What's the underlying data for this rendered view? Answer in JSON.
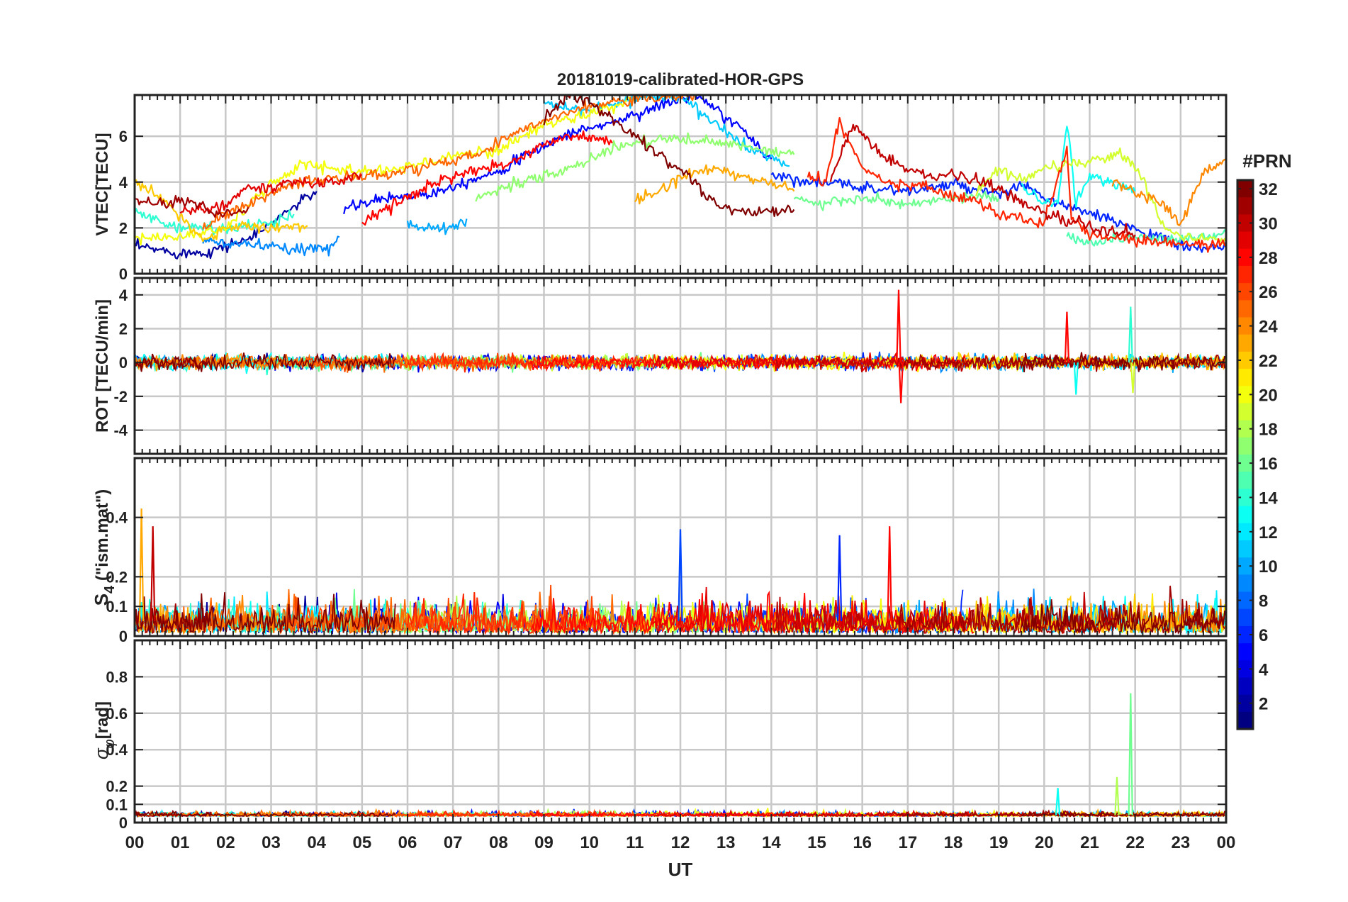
{
  "title": "20181019-calibrated-HOR-GPS",
  "x_axis": {
    "label": "UT",
    "ticks": [
      "00",
      "01",
      "02",
      "03",
      "04",
      "05",
      "06",
      "07",
      "08",
      "09",
      "10",
      "11",
      "12",
      "13",
      "14",
      "15",
      "16",
      "17",
      "18",
      "19",
      "20",
      "21",
      "22",
      "23",
      "00"
    ]
  },
  "colorbar": {
    "label": "#PRN",
    "ticks": [
      "2",
      "4",
      "6",
      "8",
      "10",
      "12",
      "14",
      "16",
      "18",
      "20",
      "22",
      "24",
      "26",
      "28",
      "30",
      "32"
    ],
    "range": [
      1,
      32
    ]
  },
  "chart_data": [
    {
      "type": "line",
      "panel": "vtec",
      "ylabel": "VTEC[TECU]",
      "yticks": [
        "0",
        "2",
        "4",
        "6"
      ],
      "ylim": [
        0,
        7.8
      ],
      "xlim": [
        0,
        24
      ],
      "series": [
        {
          "name": "PRN 2",
          "prn": 2,
          "x": [
            0,
            1,
            1.6,
            2.6,
            3.4,
            4.0
          ],
          "y": [
            1.2,
            0.9,
            0.95,
            1.6,
            2.8,
            3.6
          ]
        },
        {
          "name": "PRN 5",
          "prn": 5,
          "x": [
            4.6,
            5.5,
            6.5,
            8,
            9.5,
            10.5,
            11.5,
            12.3,
            12.9,
            13.4,
            14.0
          ],
          "y": [
            2.8,
            3.3,
            3.5,
            4.5,
            6.1,
            6.6,
            7.3,
            7.8,
            7.0,
            6.2,
            5.0
          ]
        },
        {
          "name": "PRN 6",
          "prn": 6,
          "x": [
            14.0,
            15,
            16,
            17,
            18,
            19,
            19.5,
            20,
            21,
            22,
            23,
            24
          ],
          "y": [
            4.3,
            4.0,
            3.8,
            3.6,
            3.9,
            3.4,
            3.9,
            3.3,
            2.6,
            2.0,
            1.2,
            1.1
          ]
        },
        {
          "name": "PRN 9",
          "prn": 9,
          "x": [
            1.5,
            2.5,
            3.5,
            4.3,
            4.5
          ],
          "y": [
            1.4,
            1.3,
            1.0,
            1.2,
            1.6
          ]
        },
        {
          "name": "PRN 10",
          "prn": 10,
          "x": [
            6.0,
            6.5,
            7.0,
            7.3
          ],
          "y": [
            2.2,
            2.0,
            1.9,
            2.4
          ]
        },
        {
          "name": "PRN 11",
          "prn": 11,
          "x": [
            9,
            10,
            11,
            12,
            12.9,
            13.5,
            14.4
          ],
          "y": [
            7.5,
            7.1,
            7.7,
            7.8,
            6.3,
            5.5,
            4.7
          ]
        },
        {
          "name": "PRN 13",
          "prn": 13,
          "x": [
            19.5,
            20.0,
            20.3,
            20.5,
            20.7,
            21,
            22
          ],
          "y": [
            3.7,
            3.2,
            3.0,
            6.6,
            3.0,
            4.3,
            3.6
          ]
        },
        {
          "name": "PRN 14",
          "prn": 14,
          "x": [
            0,
            1,
            2,
            3,
            3.5
          ],
          "y": [
            2.7,
            2.0,
            2.0,
            2.2,
            2.6
          ]
        },
        {
          "name": "PRN 15",
          "prn": 15,
          "x": [
            20.5,
            21,
            21.5,
            22,
            23,
            24
          ],
          "y": [
            1.6,
            1.4,
            1.5,
            1.6,
            1.5,
            1.8
          ]
        },
        {
          "name": "PRN 16",
          "prn": 16,
          "x": [
            14.5,
            15,
            16,
            17,
            18,
            19
          ],
          "y": [
            3.4,
            3.0,
            3.3,
            3.0,
            3.3,
            3.3
          ]
        },
        {
          "name": "PRN 17",
          "prn": 17,
          "x": [
            7.5,
            8.5,
            9.5,
            10.5,
            11.5,
            12.5,
            13.5,
            14.5
          ],
          "y": [
            3.3,
            4.0,
            4.5,
            5.5,
            5.9,
            5.8,
            5.5,
            5.2
          ]
        },
        {
          "name": "PRN 19",
          "prn": 19,
          "x": [
            18.5,
            19,
            19.5,
            20,
            21,
            21.6,
            21.9,
            22.2,
            22.6,
            23,
            24
          ],
          "y": [
            3.5,
            4.6,
            4.1,
            4.6,
            4.9,
            5.2,
            4.9,
            4.0,
            2.2,
            1.6,
            1.4
          ]
        },
        {
          "name": "PRN 20",
          "prn": 20,
          "x": [
            0,
            1,
            2,
            3,
            3.7,
            4.3,
            5,
            6,
            7,
            8,
            9,
            10,
            11
          ],
          "y": [
            1.6,
            1.6,
            2.0,
            3.9,
            4.8,
            4.6,
            4.5,
            4.6,
            5.2,
            5.4,
            6.5,
            7.0,
            7.6
          ]
        },
        {
          "name": "PRN 22",
          "prn": 22,
          "x": [
            0,
            0.8,
            1.5,
            2.2,
            3,
            3.8
          ],
          "y": [
            4.0,
            2.9,
            1.5,
            2.1,
            2.0,
            2.1
          ]
        },
        {
          "name": "PRN 23",
          "prn": 23,
          "x": [
            11,
            11.5,
            12,
            12.6,
            13.2,
            14.0,
            14.5
          ],
          "y": [
            3.2,
            3.6,
            4.2,
            4.6,
            4.3,
            4.0,
            3.6
          ]
        },
        {
          "name": "PRN 24",
          "prn": 24,
          "x": [
            21.5,
            22,
            22.5,
            23,
            23.5,
            24
          ],
          "y": [
            4.1,
            3.5,
            3.2,
            2.2,
            4.4,
            5.0
          ]
        },
        {
          "name": "PRN 25",
          "prn": 25,
          "x": [
            1.5,
            2.0,
            2.5,
            3.5,
            4.5,
            5.5,
            6.5,
            7.5,
            8.5,
            9.5,
            10.5,
            11.5,
            12.3
          ],
          "y": [
            2.0,
            2.6,
            3.0,
            4.0,
            4.2,
            4.3,
            4.7,
            5.2,
            6.3,
            7.1,
            7.5,
            7.7,
            7.8
          ]
        },
        {
          "name": "PRN 27",
          "prn": 27,
          "x": [
            14.8,
            15.2,
            15.4,
            15.5,
            16.0,
            16.6,
            17.2,
            18,
            18.7,
            19,
            20,
            20.5,
            20.6,
            21,
            22,
            23,
            24
          ],
          "y": [
            4.3,
            3.9,
            5.9,
            6.6,
            4.6,
            3.9,
            3.9,
            3.4,
            3.0,
            2.6,
            2.2,
            5.4,
            2.4,
            1.8,
            1.4,
            1.3,
            1.3
          ]
        },
        {
          "name": "PRN 28",
          "prn": 28,
          "x": [
            5.0,
            5.5,
            6.0,
            6.5,
            7.5,
            8.5,
            9.0,
            9.5,
            10.0,
            10.5
          ],
          "y": [
            2.2,
            2.8,
            3.3,
            3.9,
            4.5,
            5.0,
            5.7,
            6.0,
            5.9,
            5.7
          ]
        },
        {
          "name": "PRN 29",
          "prn": 29,
          "x": [
            1.0,
            2.0,
            2.5,
            3.0,
            3.5,
            4.0,
            4.5,
            5.0
          ],
          "y": [
            2.7,
            3.0,
            3.8,
            3.7,
            4.1,
            3.9,
            4.1,
            4.3
          ]
        },
        {
          "name": "PRN 30",
          "prn": 30,
          "x": [
            15.3,
            15.8,
            16.5,
            17.3,
            18,
            19,
            20,
            21,
            22
          ],
          "y": [
            4.0,
            6.5,
            5.0,
            4.3,
            4.4,
            3.7,
            2.6,
            2.0,
            1.7
          ]
        },
        {
          "name": "PRN 31",
          "prn": 31,
          "x": [
            0,
            0.6,
            1.0,
            1.6,
            2.0,
            2.5
          ],
          "y": [
            3.3,
            3.0,
            3.2,
            2.9,
            2.5,
            2.9
          ]
        },
        {
          "name": "PRN 32",
          "prn": 32,
          "x": [
            9.0,
            9.5,
            10.0,
            11.0,
            12.0,
            12.8,
            13.5,
            14.0,
            14.5
          ],
          "y": [
            6.8,
            7.8,
            7.5,
            6.0,
            4.5,
            3.0,
            2.6,
            2.7,
            2.8
          ]
        }
      ]
    },
    {
      "type": "line",
      "panel": "rot",
      "ylabel": "ROT [TECU/min]",
      "yticks": [
        "-4",
        "-2",
        "0",
        "2",
        "4"
      ],
      "ylim": [
        -5.4,
        5.0
      ],
      "xlim": [
        0,
        24
      ],
      "description_points": [
        {
          "x": 16.8,
          "y": 4.3,
          "prn": 28
        },
        {
          "x": 16.85,
          "y": -2.4,
          "prn": 28
        },
        {
          "x": 20.5,
          "y": 3.0,
          "prn": 28
        },
        {
          "x": 20.7,
          "y": -1.9,
          "prn": 13
        },
        {
          "x": 21.9,
          "y": 3.3,
          "prn": 14
        },
        {
          "x": 21.95,
          "y": -1.8,
          "prn": 19
        }
      ]
    },
    {
      "type": "line",
      "panel": "s4",
      "ylabel": "S4 (\"ism.mat\")",
      "ylabel_main": "S",
      "ylabel_sub": "4",
      "ylabel_rest": " (\"ism.mat\")",
      "yticks": [
        "0",
        "0.1",
        "0.2",
        "0.4"
      ],
      "ylim": [
        0,
        0.6
      ],
      "xlim": [
        0,
        24
      ],
      "description_points": [
        {
          "x": 0.15,
          "y": 0.43,
          "prn": 23
        },
        {
          "x": 0.4,
          "y": 0.37,
          "prn": 30
        },
        {
          "x": 12.0,
          "y": 0.36,
          "prn": 7
        },
        {
          "x": 15.5,
          "y": 0.34,
          "prn": 6
        },
        {
          "x": 16.6,
          "y": 0.37,
          "prn": 28
        }
      ]
    },
    {
      "type": "line",
      "panel": "sigma_phi",
      "ylabel": "σφ[rad]",
      "ylabel_main": "σ",
      "ylabel_sub": "φ",
      "ylabel_rest": "[rad]",
      "yticks": [
        "0",
        "0.1",
        "0.2",
        "0.4",
        "0.6",
        "0.8"
      ],
      "ylim": [
        0,
        1.0
      ],
      "xlim": [
        0,
        24
      ],
      "description_points": [
        {
          "x": 21.9,
          "y": 0.71,
          "prn": 16
        },
        {
          "x": 20.3,
          "y": 0.19,
          "prn": 13
        },
        {
          "x": 21.6,
          "y": 0.25,
          "prn": 18
        }
      ]
    }
  ]
}
